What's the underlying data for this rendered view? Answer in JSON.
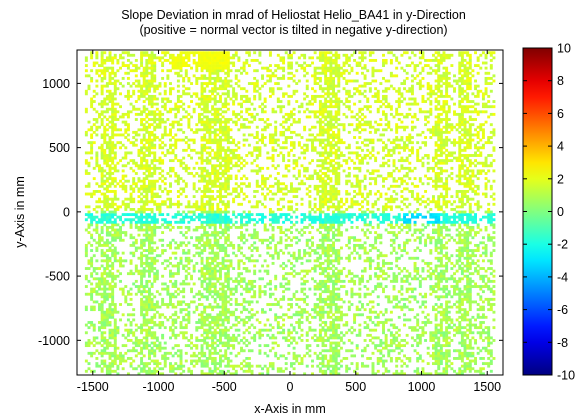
{
  "chart_data": {
    "type": "heatmap",
    "title": "Slope Deviation in mrad of Heliostat Helio_BA41 in y-Direction",
    "subtitle": "(positive = normal vector is tilted in negative y-direction)",
    "xlabel": "x-Axis in mm",
    "ylabel": "y-Axis in mm",
    "xlim": [
      -1620,
      1620
    ],
    "ylim": [
      -1270,
      1260
    ],
    "xticks": [
      -1500,
      -1000,
      -500,
      0,
      500,
      1000,
      1500
    ],
    "xtick_labels": [
      "-1500",
      "-1000",
      "-500",
      "0",
      "500",
      "1000",
      "1500"
    ],
    "yticks": [
      -1000,
      -500,
      0,
      500,
      1000
    ],
    "ytick_labels": [
      "-1000",
      "-500",
      "0",
      "500",
      "1000"
    ],
    "grid": false,
    "colorbar": {
      "min": -10,
      "max": 10,
      "ticks": [
        -10,
        -8,
        -6,
        -4,
        -2,
        0,
        2,
        4,
        6,
        8,
        10
      ],
      "tick_labels": [
        "-10",
        "-8",
        "-6",
        "-4",
        "-2",
        "0",
        "2",
        "4",
        "6",
        "8",
        "10"
      ],
      "colormap": "jet"
    },
    "field": {
      "description": "scattered facet measurements; upper half mostly +1 to +2.5 mrad, lower half mostly 0 to +1.5 mrad, band near y = -50 mm about -1.5 to -3 mrad, with data gaps",
      "region_values": [
        {
          "region": "upper half (y > 0)",
          "typical_value": 1.5
        },
        {
          "region": "lower half (y < -120)",
          "typical_value": 0.5
        },
        {
          "region": "central strip (y ≈ -50)",
          "typical_value": -2.0
        },
        {
          "region": "upper-left patch near x = -600, y = 1200",
          "typical_value": 2.0
        },
        {
          "region": "right patch near x = 1050, y = -50",
          "typical_value": -3.5
        }
      ]
    }
  }
}
